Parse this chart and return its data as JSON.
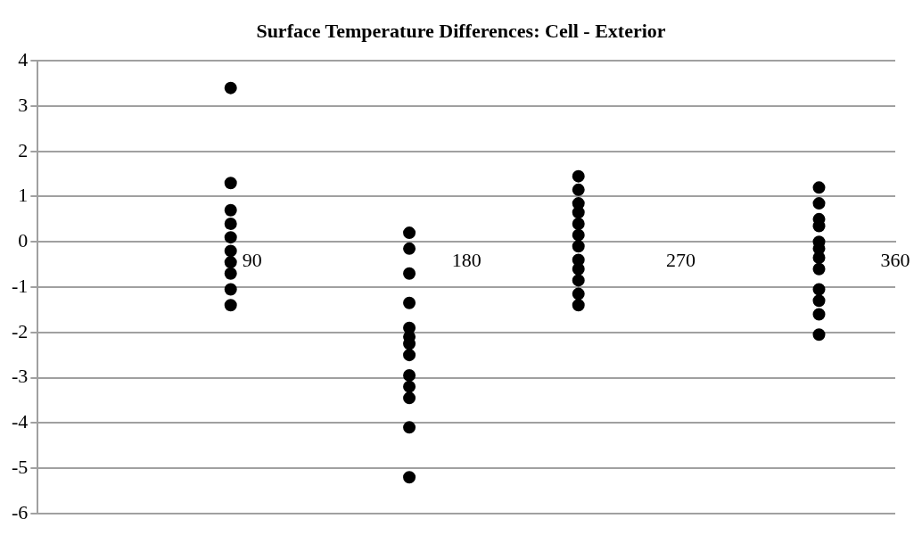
{
  "chart_data": {
    "type": "scatter",
    "title": "Surface Temperature Differences: Cell - Exterior",
    "series": [
      {
        "color": "#000000",
        "x": [
          81,
          81,
          81,
          81,
          81,
          81,
          81,
          81,
          81,
          81,
          156,
          156,
          156,
          156,
          156,
          156,
          156,
          156,
          156,
          156,
          156,
          156,
          156,
          227,
          227,
          227,
          227,
          227,
          227,
          227,
          227,
          227,
          227,
          227,
          227,
          328,
          328,
          328,
          328,
          328,
          328,
          328,
          328,
          328,
          328,
          328,
          328
        ],
        "values": [
          3.4,
          1.3,
          0.7,
          0.4,
          0.1,
          -0.2,
          -0.45,
          -0.7,
          -1.05,
          -1.4,
          0.2,
          -0.15,
          -0.7,
          -1.35,
          -1.9,
          -2.1,
          -2.25,
          -2.5,
          -2.95,
          -3.2,
          -3.45,
          -4.1,
          -5.2,
          1.45,
          1.15,
          0.85,
          0.65,
          0.4,
          0.15,
          -0.1,
          -0.4,
          -0.6,
          -0.85,
          -1.15,
          -1.4,
          1.2,
          0.85,
          0.5,
          0.35,
          0,
          -0.15,
          -0.35,
          -0.6,
          -1.05,
          -1.3,
          -1.6,
          -2.05
        ]
      }
    ],
    "xlim": [
      0,
      360
    ],
    "xticks": [
      90,
      180,
      270,
      360
    ],
    "ylim": [
      -6,
      4
    ],
    "yticks": [
      -6,
      -5,
      -4,
      -3,
      -2,
      -1,
      0,
      1,
      2,
      3,
      4
    ],
    "grid": "y",
    "legend": false,
    "marker": "circle"
  }
}
